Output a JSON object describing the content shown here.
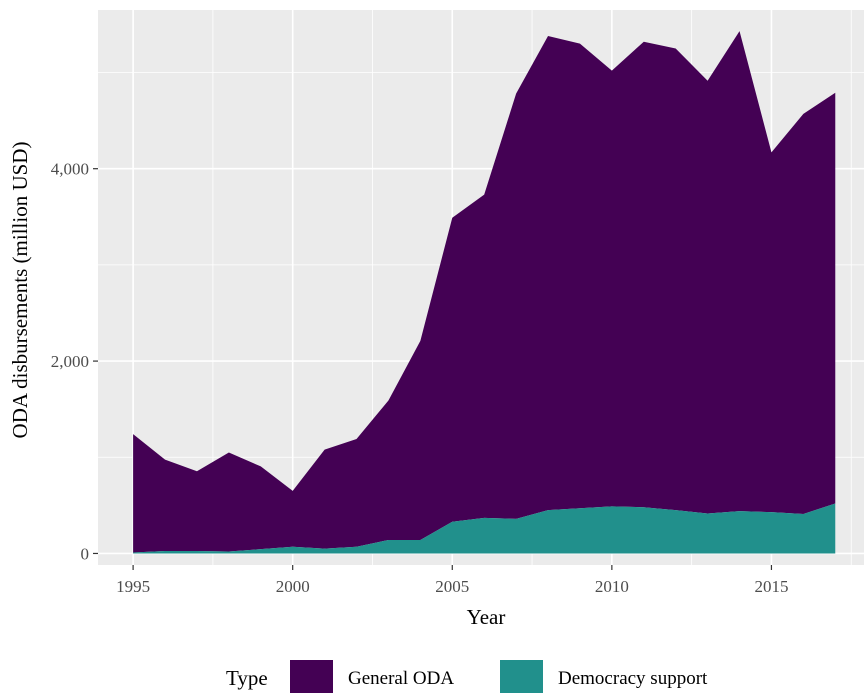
{
  "chart_data": {
    "type": "area",
    "stacked": true,
    "xlabel": "Year",
    "ylabel": "ODA disbursements (million USD)",
    "x": [
      1995,
      1996,
      1997,
      1998,
      1999,
      2000,
      2001,
      2002,
      2003,
      2004,
      2005,
      2006,
      2007,
      2008,
      2009,
      2010,
      2011,
      2012,
      2013,
      2014,
      2015,
      2016,
      2017
    ],
    "xlim": [
      1993.9,
      2017.9
    ],
    "ylim": [
      -120,
      5650
    ],
    "x_ticks": [
      1995,
      2000,
      2005,
      2010,
      2015
    ],
    "x_tick_labels": [
      "1995",
      "2000",
      "2005",
      "2010",
      "2015"
    ],
    "y_ticks": [
      0,
      2000,
      4000
    ],
    "y_tick_labels": [
      "0",
      "2,000",
      "4,000"
    ],
    "grid": true,
    "legend_position": "bottom",
    "legend_title": "Type",
    "series": [
      {
        "name": "General ODA",
        "color": "#440154",
        "values": [
          1230,
          950,
          830,
          1030,
          860,
          580,
          1030,
          1120,
          1450,
          2070,
          3160,
          3360,
          4420,
          4930,
          4830,
          4530,
          4840,
          4800,
          4500,
          4990,
          3740,
          4160,
          4270
        ]
      },
      {
        "name": "Democracy support",
        "color": "#21908C",
        "values": [
          10,
          25,
          25,
          20,
          45,
          70,
          50,
          70,
          140,
          140,
          330,
          370,
          360,
          450,
          470,
          490,
          480,
          450,
          415,
          440,
          430,
          410,
          520
        ]
      }
    ]
  }
}
